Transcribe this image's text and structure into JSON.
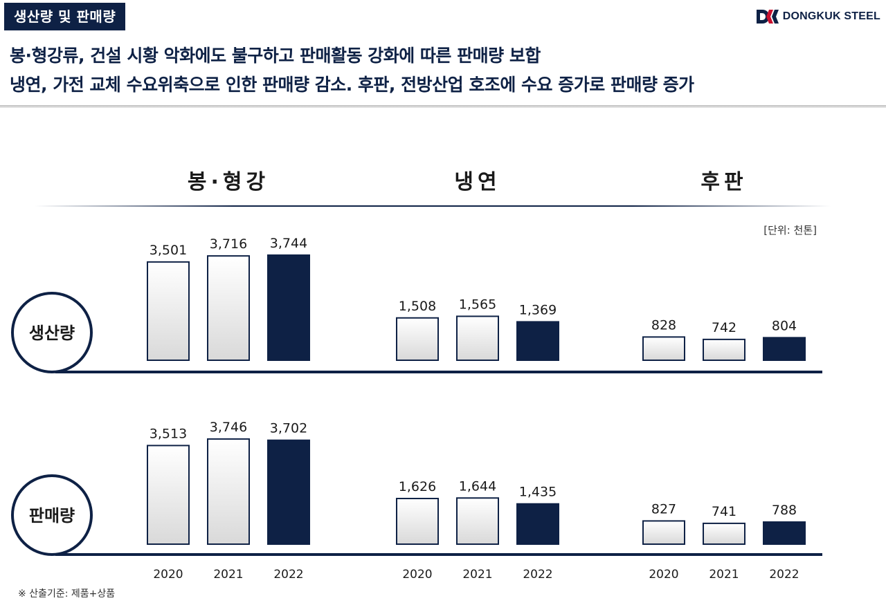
{
  "header": {
    "badge": "생산량 및 판매량",
    "logo_text": "DONGKUK STEEL",
    "headline": [
      "봉·형강류, 건설 시황 악화에도 불구하고 판매활동 강화에 따른 판매량 보합",
      "냉연, 가전 교체 수요위축으로 인한 판매량 감소.  후판, 전방산업 호조에 수요 증가로 판매량 증가"
    ]
  },
  "unit_note": "[단위: 천톤]",
  "footnote": "※ 산출기준: 제품+상품",
  "colors": {
    "navy": "#0e2145",
    "bar_light_top": "#ffffff",
    "bar_light_bottom": "#d9d9d9"
  },
  "chart_data": {
    "type": "bar",
    "unit": "천톤",
    "years": [
      "2020",
      "2021",
      "2022"
    ],
    "groups": [
      "봉·형강",
      "냉연",
      "후판"
    ],
    "rows": [
      {
        "name": "생산량",
        "series": [
          {
            "group": "봉·형강",
            "values": [
              3501,
              3716,
              3744
            ]
          },
          {
            "group": "냉연",
            "values": [
              1508,
              1565,
              1369
            ]
          },
          {
            "group": "후판",
            "values": [
              828,
              742,
              804
            ]
          }
        ]
      },
      {
        "name": "판매량",
        "series": [
          {
            "group": "봉·형강",
            "values": [
              3513,
              3746,
              3702
            ]
          },
          {
            "group": "냉연",
            "values": [
              1626,
              1644,
              1435
            ]
          },
          {
            "group": "후판",
            "values": [
              827,
              741,
              788
            ]
          }
        ]
      }
    ]
  }
}
